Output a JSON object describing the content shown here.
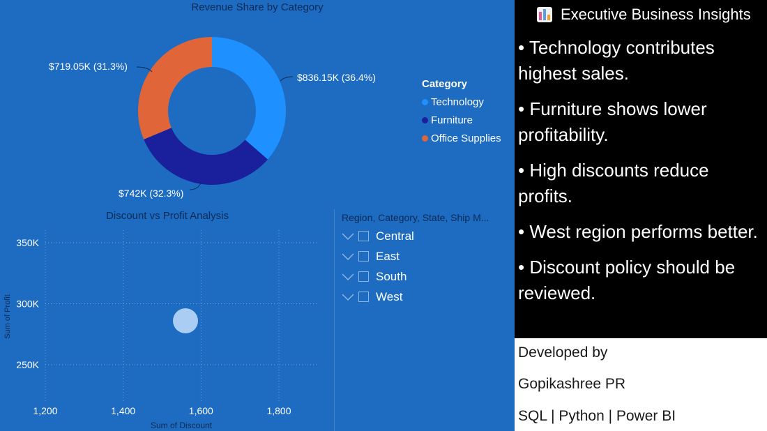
{
  "donut": {
    "title": "Revenue Share by Category",
    "legend_title": "Category",
    "slices": [
      {
        "name": "Technology",
        "value": 836.15,
        "label": "$836.15K (36.4%)",
        "color": "#1e90ff"
      },
      {
        "name": "Furniture",
        "value": 742,
        "label": "$742K (32.3%)",
        "color": "#1a1f9c"
      },
      {
        "name": "Office Supplies",
        "value": 719.05,
        "label": "$719.05K (31.3%)",
        "color": "#e0663a"
      }
    ]
  },
  "scatter": {
    "title": "Discount vs Profit Analysis",
    "xlabel": "Sum of Discount",
    "ylabel": "Sum of Profit",
    "x_ticks": [
      "1,200",
      "1,400",
      "1,600",
      "1,800"
    ],
    "y_ticks": [
      "350K",
      "300K",
      "250K"
    ]
  },
  "chart_data": {
    "type": "scatter",
    "title": "Discount vs Profit Analysis",
    "xlabel": "Sum of Discount",
    "ylabel": "Sum of Profit",
    "xlim": [
      1200,
      1900
    ],
    "ylim": [
      225000,
      360000
    ],
    "x": [
      1560
    ],
    "y": [
      286000
    ],
    "grid": true
  },
  "slicer": {
    "header": "Region, Category, State, Ship M...",
    "items": [
      "Central",
      "East",
      "South",
      "West"
    ]
  },
  "insights": {
    "title": "Executive Business Insights",
    "items": [
      "• Technology contributes highest sales.",
      "• Furniture shows lower profitability.",
      "• High discounts reduce profits.",
      "• West region performs better.",
      "• Discount policy should be reviewed."
    ]
  },
  "credits": {
    "line1": "Developed by",
    "line2": "Gopikashree PR",
    "line3": "SQL | Python | Power BI"
  },
  "colors": {
    "background": "#1d6cc2",
    "panel_black": "#000000",
    "panel_white": "#ffffff",
    "scatter_point": "#a9cdf3"
  }
}
